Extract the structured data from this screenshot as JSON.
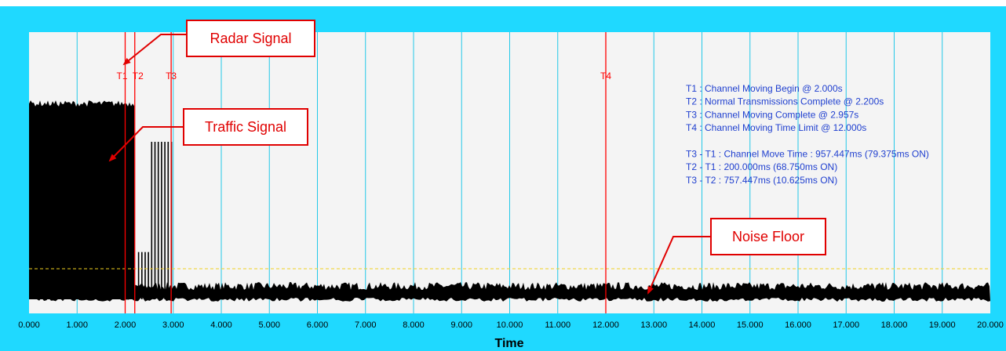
{
  "chart_data": {
    "type": "line",
    "xlabel": "Time",
    "xlim": [
      0,
      20
    ],
    "x_ticks": [
      "0.000",
      "1.000",
      "2.000",
      "3.000",
      "4.000",
      "5.000",
      "6.000",
      "7.000",
      "8.000",
      "9.000",
      "10.000",
      "11.000",
      "12.000",
      "13.000",
      "14.000",
      "15.000",
      "16.000",
      "17.000",
      "18.000",
      "19.000",
      "20.000"
    ],
    "grid": true,
    "markers": [
      {
        "label": "T1",
        "x": 2.0
      },
      {
        "label": "T2",
        "x": 2.2
      },
      {
        "label": "T3",
        "x": 2.957
      },
      {
        "label": "T4",
        "x": 12.0
      }
    ],
    "threshold_level": 0.13,
    "signal": {
      "traffic_level": 0.82,
      "traffic_range": [
        0,
        2.2
      ],
      "burst_level": 0.67,
      "burst_range": [
        2.2,
        2.957
      ],
      "noise_level": 0.04
    },
    "info_lines": [
      "T1 : Channel Moving Begin @ 2.000s",
      "T2 : Normal Transmissions Complete @ 2.200s",
      "T3 : Channel Moving Complete @ 2.957s",
      "T4 : Channel Moving Time Limit @ 12.000s",
      "",
      "T3 - T1 : Channel Move Time : 957.447ms (79.375ms ON)",
      "T2 - T1 : 200.000ms (68.750ms ON)",
      "T3 - T2 : 757.447ms (10.625ms ON)"
    ],
    "annotations": [
      {
        "text": "Radar Signal",
        "target": "T1"
      },
      {
        "text": "Traffic Signal",
        "target": "traffic"
      },
      {
        "text": "Noise Floor",
        "target": "noise"
      }
    ]
  },
  "colors": {
    "frame": "#1fd9ff",
    "plot_bg": "#f4f4f4",
    "grid": "#22c8e8",
    "marker": "#ff0000",
    "signal": "#000000",
    "threshold": "#f0d020",
    "info_text": "#1f3fcf",
    "callout": "#e00000"
  }
}
